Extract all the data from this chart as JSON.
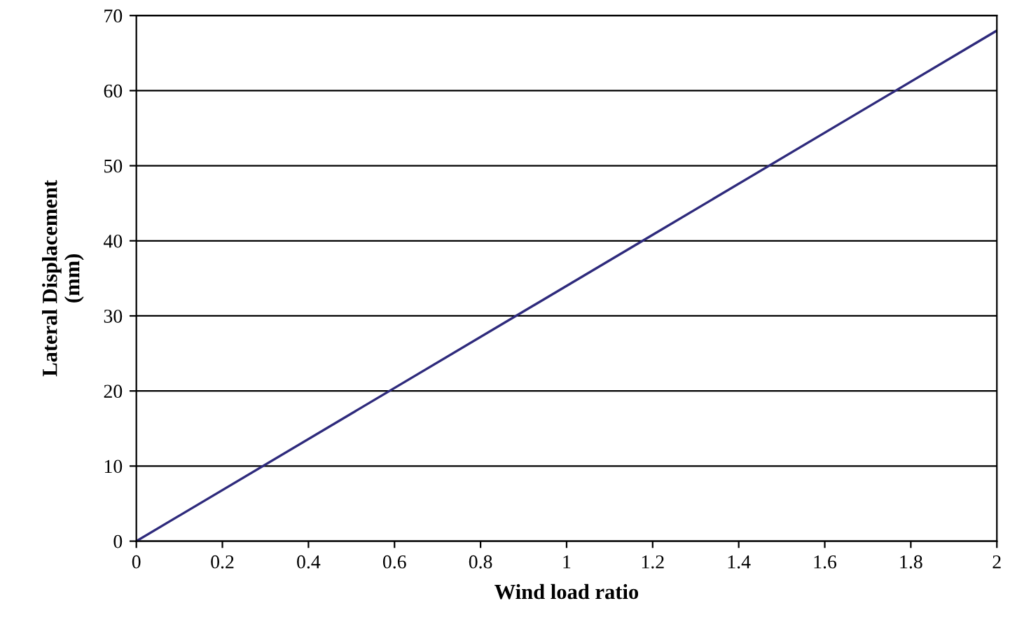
{
  "chart_data": {
    "type": "line",
    "xlabel": "Wind load ratio",
    "ylabel": "Lateral Displacement\n(mm)",
    "x": [
      0,
      0.6,
      1.2,
      2
    ],
    "series": [
      {
        "color": "#2e2a7c",
        "values": [
          0,
          20.4,
          40.8,
          68
        ]
      }
    ],
    "xlim": [
      0,
      2
    ],
    "xticks": [
      0,
      0.2,
      0.4,
      0.6,
      0.8,
      1,
      1.2,
      1.4,
      1.6,
      1.8,
      2
    ],
    "ylim": [
      0,
      70
    ],
    "yticks": [
      0,
      10,
      20,
      30,
      40,
      50,
      60,
      70
    ],
    "grid": "y",
    "marker": "none",
    "line_style": "solid"
  }
}
